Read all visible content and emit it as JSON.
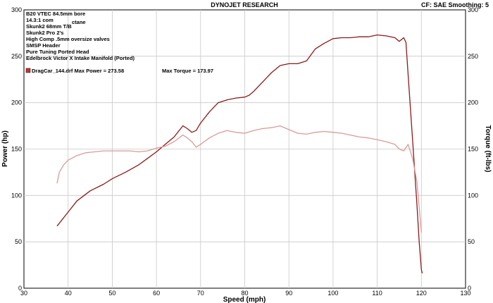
{
  "header": {
    "center_title": "DYNOJET RESEARCH",
    "right_info": "CF: SAE   Smoothing: 5"
  },
  "notes": [
    "B20 VTEC 84.5mm bore",
    "14.3:1 com",
    "Skunk2 68mm T/B",
    "Skunk2 Pro 2's",
    "High Comp .5mm oversize valves",
    "SMSP Header",
    "Pure Tuning Ported Head",
    "Edelbrock Victor X Intake Manifold (Ported)"
  ],
  "notes_extra": "ctane",
  "legend": {
    "run_label": "DragCar_144.drf Max Power = 273.58",
    "torque_label": "Max Torque = 173.97",
    "swatch_color": "#cc3333"
  },
  "chart_data": {
    "type": "line",
    "title": "DYNOJET RESEARCH",
    "xlabel": "Speed (mph)",
    "ylabel": "Power (hp)",
    "y2label": "Torque (ft-lbs)",
    "xlim": [
      30,
      130
    ],
    "ylim": [
      0,
      300
    ],
    "y2lim": [
      0,
      300
    ],
    "x_ticks": [
      30,
      40,
      50,
      60,
      70,
      80,
      90,
      100,
      110,
      120,
      130
    ],
    "y_ticks": [
      0,
      50,
      100,
      150,
      200,
      250,
      300
    ],
    "grid": true,
    "series": [
      {
        "name": "Power",
        "color": "#8b1a1a",
        "x": [
          37.5,
          40,
          42,
          45,
          48,
          50,
          53,
          56,
          58,
          60,
          62,
          64,
          65,
          66,
          67,
          68,
          69,
          70,
          72,
          74,
          76,
          78,
          80,
          81,
          82,
          84,
          86,
          88,
          90,
          92,
          94,
          96,
          98,
          100,
          102,
          104,
          106,
          108,
          110,
          112,
          114,
          115,
          116,
          116.5,
          117,
          118,
          119,
          119.5,
          120,
          120.2
        ],
        "y": [
          67,
          82,
          94,
          105,
          112,
          118,
          125,
          133,
          140,
          147,
          155,
          163,
          169,
          175,
          172,
          168,
          170,
          178,
          190,
          200,
          203,
          205,
          206,
          208,
          212,
          222,
          232,
          240,
          242,
          242,
          245,
          258,
          264,
          269,
          270,
          270,
          271,
          271,
          273,
          272,
          270,
          266,
          270,
          265,
          230,
          160,
          90,
          50,
          20,
          16
        ]
      },
      {
        "name": "Torque",
        "color": "#d99a9a",
        "x": [
          37.5,
          38,
          39,
          40,
          42,
          44,
          46,
          48,
          50,
          52,
          54,
          56,
          58,
          60,
          62,
          64,
          66,
          67,
          68,
          69,
          70,
          72,
          74,
          76,
          78,
          80,
          82,
          84,
          86,
          88,
          90,
          92,
          94,
          96,
          98,
          100,
          102,
          104,
          106,
          108,
          110,
          112,
          114,
          115,
          116,
          117,
          118,
          119,
          120
        ],
        "y": [
          113,
          125,
          133,
          138,
          143,
          146,
          147,
          148,
          148,
          148,
          148,
          147,
          148,
          151,
          153,
          158,
          165,
          162,
          158,
          152,
          155,
          162,
          167,
          170,
          168,
          167,
          170,
          172,
          173,
          175,
          171,
          167,
          166,
          168,
          169,
          168,
          167,
          165,
          163,
          162,
          160,
          158,
          155,
          150,
          148,
          155,
          140,
          115,
          60
        ]
      }
    ]
  }
}
